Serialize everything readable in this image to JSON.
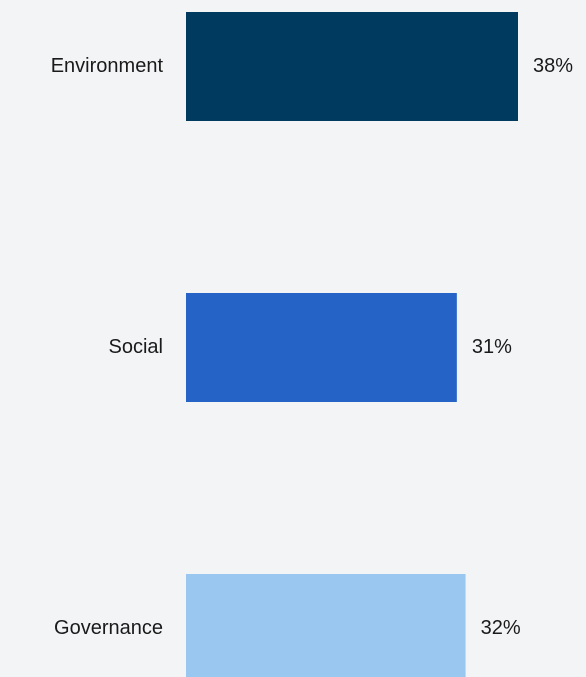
{
  "chart_data": {
    "type": "bar",
    "orientation": "horizontal",
    "categories": [
      "Environment",
      "Social",
      "Governance"
    ],
    "values": [
      38,
      31,
      32
    ],
    "value_labels": [
      "38%",
      "31%",
      "32%"
    ],
    "colors": [
      "#003a5e",
      "#2563c7",
      "#9ac7ef"
    ],
    "xlim": [
      0,
      38
    ],
    "grid": false,
    "legend": "none"
  }
}
